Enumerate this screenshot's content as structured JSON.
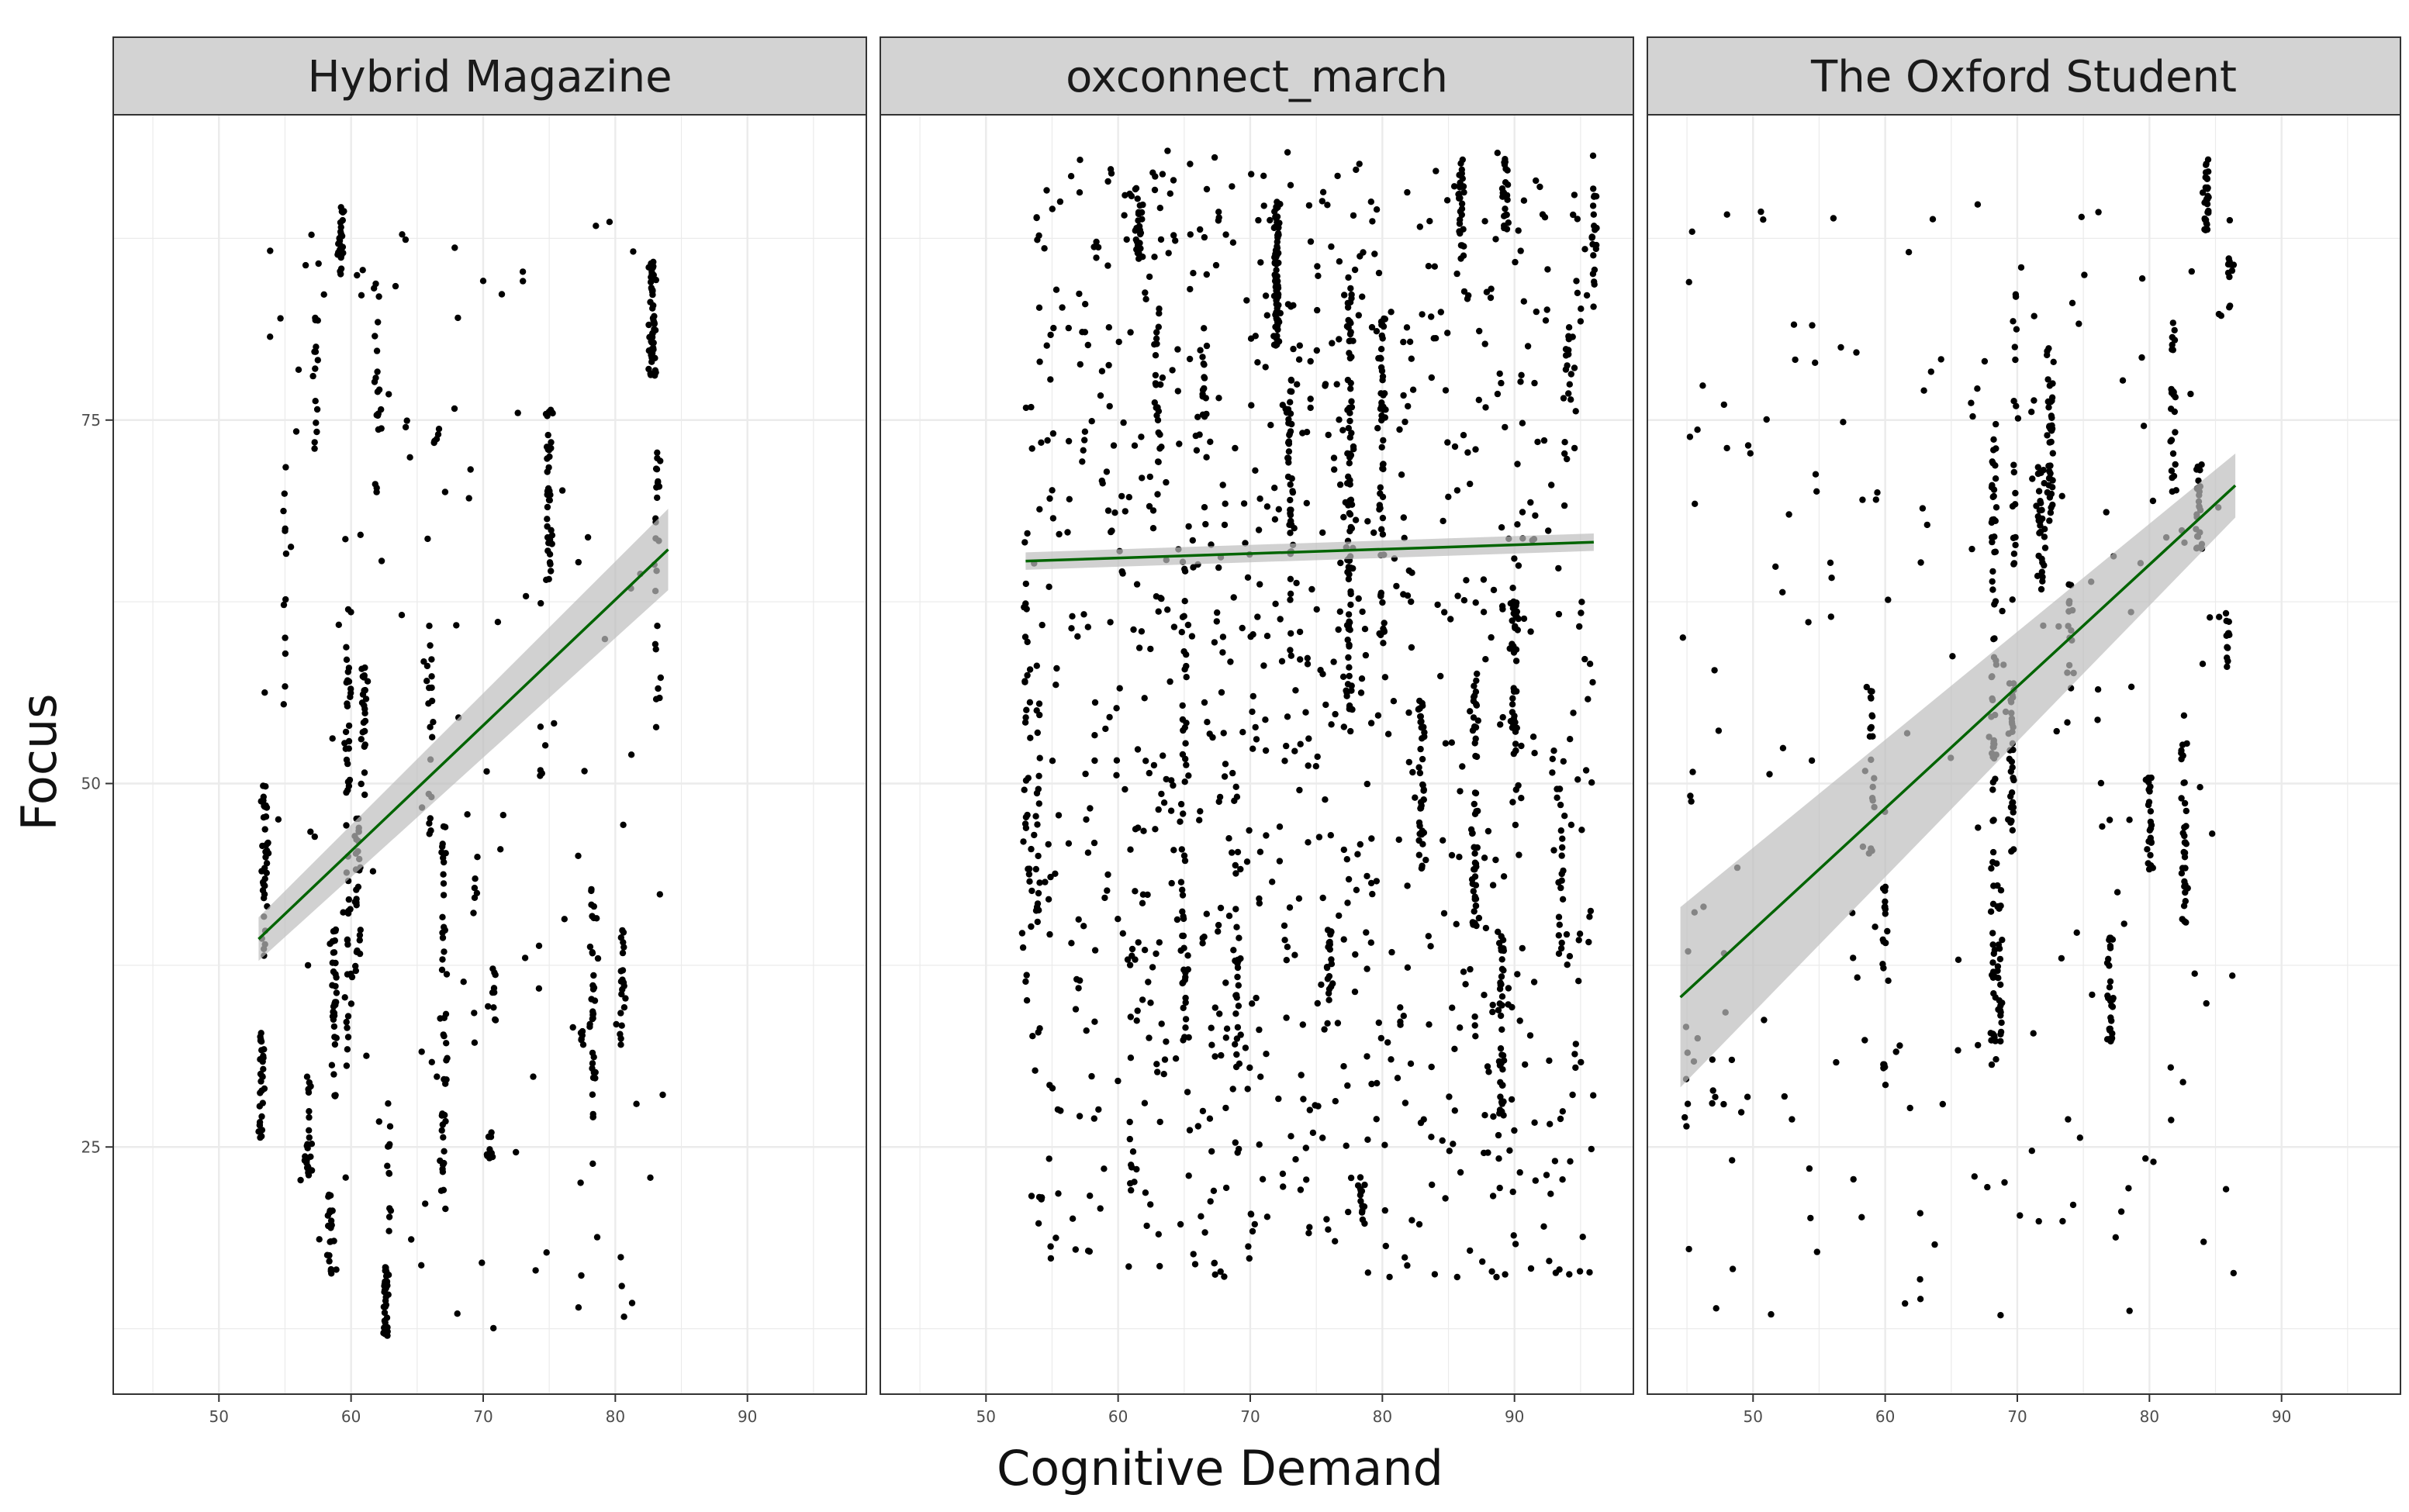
{
  "chart_data": {
    "type": "scatter",
    "layout": "faceted",
    "xlabel": "Cognitive Demand",
    "ylabel": "Focus",
    "xlim": [
      42,
      99
    ],
    "ylim": [
      8,
      96
    ],
    "x_ticks": [
      50,
      60,
      70,
      80,
      90
    ],
    "y_ticks": [
      25,
      50,
      75
    ],
    "grid": true,
    "colors": {
      "points": "#000000",
      "trend": "#006400",
      "band": "#bdbdbd",
      "strip": "#d3d3d3",
      "grid": "#ebebeb"
    },
    "trend": "linear fit with confidence band",
    "facets": [
      {
        "title": "Hybrid Magazine",
        "x_range": [
          53,
          84
        ],
        "trend_line": {
          "x": [
            53,
            84
          ],
          "y": [
            39.3,
            66.1
          ]
        },
        "band_halfwidth": [
          1.5,
          2.8
        ],
        "clusters": [
          {
            "x": 53.2,
            "y1": 25,
            "y2": 33,
            "n": 30
          },
          {
            "x": 53.5,
            "y1": 38,
            "y2": 50,
            "n": 40
          },
          {
            "x": 55,
            "y1": 55,
            "y2": 72,
            "n": 12
          },
          {
            "x": 56.8,
            "y1": 23,
            "y2": 30,
            "n": 25
          },
          {
            "x": 57.3,
            "y1": 73,
            "y2": 84,
            "n": 15
          },
          {
            "x": 58.4,
            "y1": 16,
            "y2": 22,
            "n": 20
          },
          {
            "x": 58.7,
            "y1": 28,
            "y2": 40,
            "n": 35
          },
          {
            "x": 59.2,
            "y1": 85,
            "y2": 90,
            "n": 25
          },
          {
            "x": 59.8,
            "y1": 30,
            "y2": 62,
            "n": 50
          },
          {
            "x": 60.5,
            "y1": 37,
            "y2": 48,
            "n": 30
          },
          {
            "x": 61,
            "y1": 49,
            "y2": 58,
            "n": 25
          },
          {
            "x": 62,
            "y1": 70,
            "y2": 85,
            "n": 20
          },
          {
            "x": 62.6,
            "y1": 12,
            "y2": 17,
            "n": 35
          },
          {
            "x": 62.9,
            "y1": 18,
            "y2": 28,
            "n": 12
          },
          {
            "x": 66,
            "y1": 46,
            "y2": 62,
            "n": 20
          },
          {
            "x": 66.5,
            "y1": 72,
            "y2": 75,
            "n": 5
          },
          {
            "x": 67,
            "y1": 20,
            "y2": 48,
            "n": 45
          },
          {
            "x": 69.5,
            "y1": 41,
            "y2": 45,
            "n": 6
          },
          {
            "x": 70.5,
            "y1": 24,
            "y2": 26,
            "n": 10
          },
          {
            "x": 70.8,
            "y1": 33,
            "y2": 39,
            "n": 8
          },
          {
            "x": 75,
            "y1": 64,
            "y2": 76,
            "n": 40
          },
          {
            "x": 74.5,
            "y1": 50,
            "y2": 55,
            "n": 5
          },
          {
            "x": 77.5,
            "y1": 32,
            "y2": 33,
            "n": 6
          },
          {
            "x": 78.3,
            "y1": 26,
            "y2": 43,
            "n": 35
          },
          {
            "x": 80.5,
            "y1": 32,
            "y2": 40,
            "n": 20
          },
          {
            "x": 82.8,
            "y1": 78,
            "y2": 86,
            "n": 60
          },
          {
            "x": 83.2,
            "y1": 53,
            "y2": 73,
            "n": 25
          }
        ],
        "scatter": {
          "n": 120,
          "x1": 53,
          "x2": 84,
          "y1": 12,
          "y2": 89
        }
      },
      {
        "title": "oxconnect_march",
        "x_range": [
          53,
          96
        ],
        "trend_line": {
          "x": [
            53,
            96
          ],
          "y": [
            65.3,
            66.6
          ]
        },
        "band_halfwidth": [
          0.6,
          0.6
        ],
        "clusters": [
          {
            "x": 53,
            "y1": 30,
            "y2": 67,
            "n": 25
          },
          {
            "x": 54,
            "y1": 40,
            "y2": 56,
            "n": 15
          },
          {
            "x": 61.6,
            "y1": 86,
            "y2": 91,
            "n": 30
          },
          {
            "x": 61,
            "y1": 22,
            "y2": 26,
            "n": 5
          },
          {
            "x": 63,
            "y1": 72,
            "y2": 83,
            "n": 20
          },
          {
            "x": 65,
            "y1": 32,
            "y2": 66,
            "n": 45
          },
          {
            "x": 66.5,
            "y1": 75,
            "y2": 82,
            "n": 15
          },
          {
            "x": 69,
            "y1": 24,
            "y2": 50,
            "n": 30
          },
          {
            "x": 72,
            "y1": 80,
            "y2": 90,
            "n": 80
          },
          {
            "x": 73,
            "y1": 60,
            "y2": 78,
            "n": 40
          },
          {
            "x": 76,
            "y1": 35,
            "y2": 40,
            "n": 20
          },
          {
            "x": 77.5,
            "y1": 55,
            "y2": 85,
            "n": 90
          },
          {
            "x": 78.5,
            "y1": 19,
            "y2": 23,
            "n": 12
          },
          {
            "x": 80,
            "y1": 60,
            "y2": 82,
            "n": 50
          },
          {
            "x": 83,
            "y1": 44,
            "y2": 56,
            "n": 40
          },
          {
            "x": 86,
            "y1": 86,
            "y2": 93,
            "n": 30
          },
          {
            "x": 87,
            "y1": 40,
            "y2": 58,
            "n": 50
          },
          {
            "x": 89,
            "y1": 27,
            "y2": 40,
            "n": 40
          },
          {
            "x": 89.3,
            "y1": 88,
            "y2": 93,
            "n": 20
          },
          {
            "x": 90,
            "y1": 52,
            "y2": 64,
            "n": 40
          },
          {
            "x": 93.5,
            "y1": 38,
            "y2": 50,
            "n": 15
          },
          {
            "x": 94,
            "y1": 76,
            "y2": 81,
            "n": 10
          },
          {
            "x": 96,
            "y1": 84,
            "y2": 91,
            "n": 20
          }
        ],
        "scatter": {
          "n": 1000,
          "x1": 53,
          "x2": 96,
          "y1": 16,
          "y2": 94
        }
      },
      {
        "title": "The Oxford Student",
        "x_range": [
          44.5,
          86.5
        ],
        "trend_line": {
          "x": [
            44.5,
            86.5
          ],
          "y": [
            35.3,
            70.5
          ]
        },
        "band_halfwidth": [
          6.2,
          2.2
        ],
        "clusters": [
          {
            "x": 45,
            "y1": 25,
            "y2": 30,
            "n": 4
          },
          {
            "x": 47,
            "y1": 27,
            "y2": 29,
            "n": 3
          },
          {
            "x": 59,
            "y1": 45,
            "y2": 58,
            "n": 20
          },
          {
            "x": 60,
            "y1": 36,
            "y2": 44,
            "n": 15
          },
          {
            "x": 60,
            "y1": 29,
            "y2": 31,
            "n": 5
          },
          {
            "x": 68.2,
            "y1": 30,
            "y2": 75,
            "n": 80
          },
          {
            "x": 68.7,
            "y1": 32,
            "y2": 43,
            "n": 25
          },
          {
            "x": 69.6,
            "y1": 45,
            "y2": 57,
            "n": 35
          },
          {
            "x": 69.8,
            "y1": 65,
            "y2": 85,
            "n": 20
          },
          {
            "x": 71.8,
            "y1": 63,
            "y2": 72,
            "n": 30
          },
          {
            "x": 72.5,
            "y1": 68,
            "y2": 80,
            "n": 40
          },
          {
            "x": 74,
            "y1": 56,
            "y2": 64,
            "n": 15
          },
          {
            "x": 77,
            "y1": 32,
            "y2": 40,
            "n": 30
          },
          {
            "x": 80,
            "y1": 44,
            "y2": 51,
            "n": 25
          },
          {
            "x": 81.8,
            "y1": 70,
            "y2": 82,
            "n": 25
          },
          {
            "x": 82.6,
            "y1": 40,
            "y2": 55,
            "n": 35
          },
          {
            "x": 83.7,
            "y1": 66,
            "y2": 72,
            "n": 25
          },
          {
            "x": 84.3,
            "y1": 88,
            "y2": 93,
            "n": 35
          },
          {
            "x": 86,
            "y1": 58,
            "y2": 62,
            "n": 12
          },
          {
            "x": 86,
            "y1": 82,
            "y2": 89,
            "n": 10
          }
        ],
        "scatter": {
          "n": 200,
          "x1": 44.5,
          "x2": 86.5,
          "y1": 12,
          "y2": 90
        }
      }
    ]
  }
}
